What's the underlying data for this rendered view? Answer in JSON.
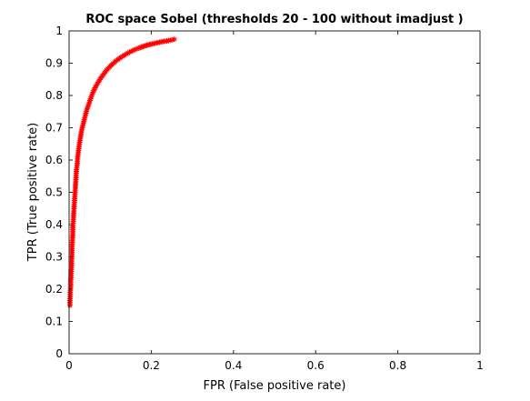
{
  "chart_data": {
    "type": "scatter",
    "title": "ROC space Sobel (thresholds 20 - 100  without imadjust )",
    "xlabel": "FPR (False positive rate)",
    "ylabel": "TPR (True positive rate)",
    "xlim": [
      0,
      1
    ],
    "ylim": [
      0,
      1
    ],
    "xticks": [
      "0",
      "0.2",
      "0.4",
      "0.6",
      "0.8",
      "1"
    ],
    "yticks": [
      "0",
      "0.1",
      "0.2",
      "0.3",
      "0.4",
      "0.5",
      "0.6",
      "0.7",
      "0.8",
      "0.9",
      "1"
    ],
    "grid": false,
    "legend": false,
    "marker": "*",
    "series": [
      {
        "color": "#ff0000",
        "x": [
          0.002,
          0.002,
          0.003,
          0.003,
          0.004,
          0.004,
          0.005,
          0.005,
          0.006,
          0.006,
          0.007,
          0.007,
          0.008,
          0.009,
          0.009,
          0.01,
          0.011,
          0.012,
          0.013,
          0.014,
          0.015,
          0.016,
          0.017,
          0.018,
          0.02,
          0.021,
          0.023,
          0.025,
          0.027,
          0.029,
          0.031,
          0.034,
          0.037,
          0.04,
          0.043,
          0.047,
          0.051,
          0.055,
          0.06,
          0.065,
          0.071,
          0.077,
          0.084,
          0.091,
          0.099,
          0.107,
          0.116,
          0.126,
          0.136,
          0.147,
          0.158,
          0.17,
          0.183,
          0.196,
          0.21,
          0.224,
          0.238,
          0.25,
          0.256
        ],
        "y": [
          0.15,
          0.165,
          0.18,
          0.195,
          0.21,
          0.225,
          0.24,
          0.255,
          0.27,
          0.29,
          0.31,
          0.33,
          0.35,
          0.37,
          0.39,
          0.41,
          0.43,
          0.45,
          0.47,
          0.49,
          0.51,
          0.53,
          0.55,
          0.57,
          0.59,
          0.61,
          0.63,
          0.65,
          0.665,
          0.68,
          0.695,
          0.71,
          0.725,
          0.74,
          0.755,
          0.77,
          0.785,
          0.8,
          0.815,
          0.828,
          0.841,
          0.854,
          0.866,
          0.878,
          0.889,
          0.899,
          0.909,
          0.918,
          0.926,
          0.934,
          0.941,
          0.947,
          0.953,
          0.958,
          0.962,
          0.966,
          0.969,
          0.972,
          0.974
        ]
      }
    ]
  }
}
